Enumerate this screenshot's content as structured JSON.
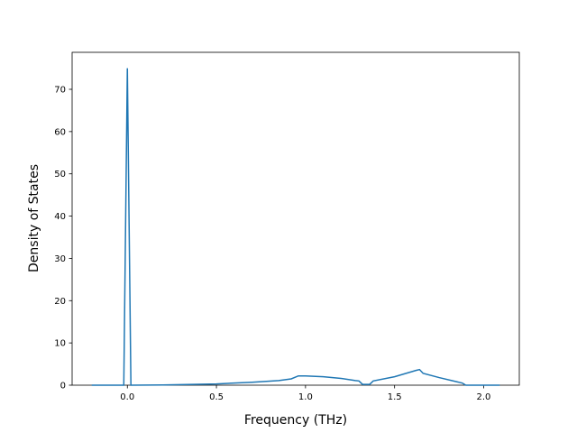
{
  "chart_data": {
    "type": "line",
    "x_label": "Frequency (THz)",
    "y_label": "Density of States",
    "series": [
      {
        "name": "DOS",
        "color": "#1f77b4",
        "x": [
          -0.2,
          -0.02,
          0.0,
          0.02,
          0.2,
          0.5,
          0.7,
          0.85,
          0.92,
          0.96,
          1.0,
          1.1,
          1.2,
          1.28,
          1.3,
          1.32,
          1.36,
          1.38,
          1.5,
          1.62,
          1.64,
          1.66,
          1.75,
          1.85,
          1.88,
          1.9,
          2.09
        ],
        "values": [
          0,
          0,
          75,
          0,
          0.05,
          0.3,
          0.7,
          1.1,
          1.5,
          2.2,
          2.2,
          2.0,
          1.6,
          1.1,
          1.0,
          0.2,
          0.2,
          1.0,
          2.0,
          3.5,
          3.7,
          2.8,
          1.8,
          0.8,
          0.5,
          0,
          0
        ]
      }
    ],
    "xlim": [
      -0.31,
      2.2
    ],
    "ylim": [
      0,
      78.75
    ],
    "xticks": [
      {
        "value": 0,
        "label": "0.0"
      },
      {
        "value": 0.5,
        "label": "0.5"
      },
      {
        "value": 1,
        "label": "1.0"
      },
      {
        "value": 1.5,
        "label": "1.5"
      },
      {
        "value": 2,
        "label": "2.0"
      }
    ],
    "yticks": [
      0,
      10,
      20,
      30,
      40,
      50,
      60,
      70
    ]
  }
}
